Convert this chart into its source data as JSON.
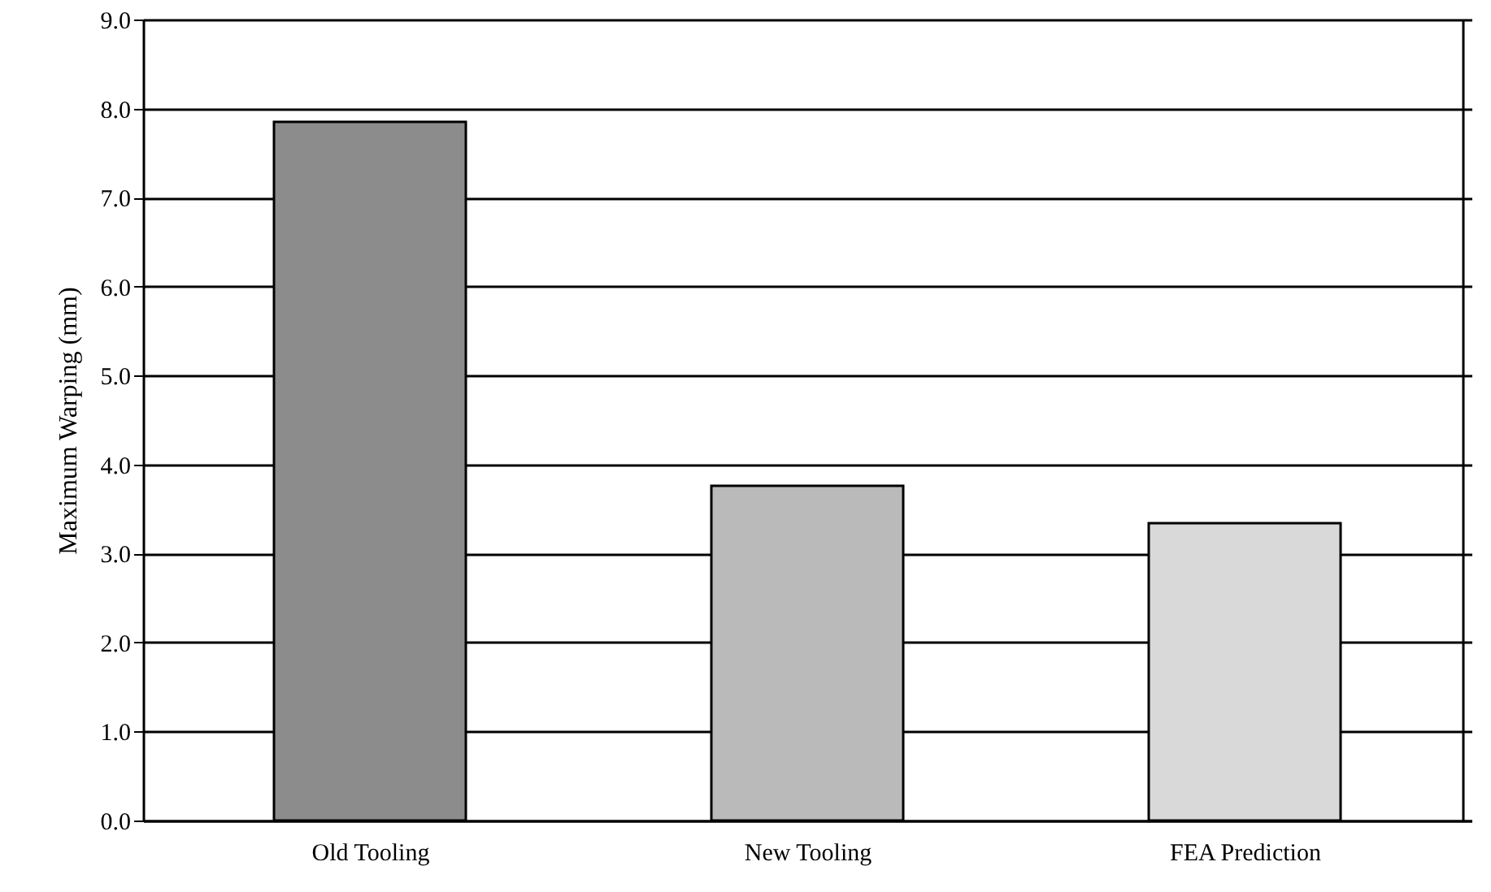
{
  "chart_data": {
    "type": "bar",
    "ylabel": "Maximum Warping (mm)",
    "categories": [
      "Old Tooling",
      "New Tooling",
      "FEA Prediction"
    ],
    "values": [
      7.85,
      3.76,
      3.34
    ],
    "colors": [
      "#8c8c8c",
      "#bababa",
      "#d9d9d9"
    ],
    "ylim": [
      0,
      9
    ],
    "yticks": [
      {
        "value": 0,
        "label": "0.0"
      },
      {
        "value": 1,
        "label": "1.0"
      },
      {
        "value": 2,
        "label": "2.0"
      },
      {
        "value": 3,
        "label": "3.0"
      },
      {
        "value": 4,
        "label": "4.0"
      },
      {
        "value": 5,
        "label": "5.0"
      },
      {
        "value": 6,
        "label": "6.0"
      },
      {
        "value": 7,
        "label": "7.0"
      },
      {
        "value": 8,
        "label": "8.0"
      },
      {
        "value": 9,
        "label": "9.0"
      }
    ],
    "grid": "y"
  }
}
